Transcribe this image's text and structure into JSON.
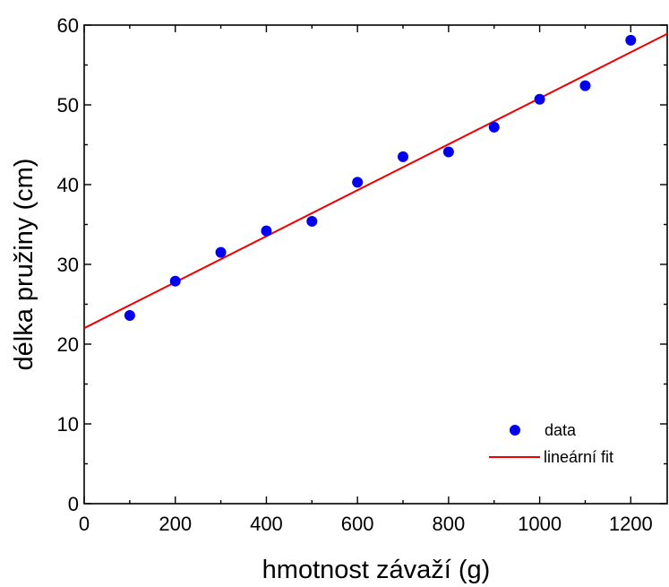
{
  "chart_data": {
    "type": "scatter",
    "xlabel": "hmotnost závaží (g)",
    "ylabel": "délka pružiny (cm)",
    "xlim": [
      0,
      1280
    ],
    "ylim": [
      0,
      60
    ],
    "x_ticks": [
      "0",
      "200",
      "400",
      "600",
      "800",
      "1000",
      "1200"
    ],
    "y_ticks": [
      "0",
      "10",
      "20",
      "30",
      "40",
      "50",
      "60"
    ],
    "grid": false,
    "legend_position": "bottom-right",
    "series": [
      {
        "name": "data",
        "kind": "scatter",
        "color": "#0000ee",
        "x": [
          100,
          200,
          300,
          400,
          500,
          600,
          700,
          800,
          900,
          1000,
          1100,
          1200
        ],
        "y": [
          23.6,
          27.9,
          31.5,
          34.2,
          35.4,
          40.3,
          43.5,
          44.1,
          47.2,
          50.7,
          52.4,
          58.1
        ]
      },
      {
        "name": "lineární fit",
        "kind": "line",
        "color": "#ee0000",
        "x": [
          0,
          1280
        ],
        "y": [
          22.0,
          58.9
        ]
      }
    ]
  }
}
